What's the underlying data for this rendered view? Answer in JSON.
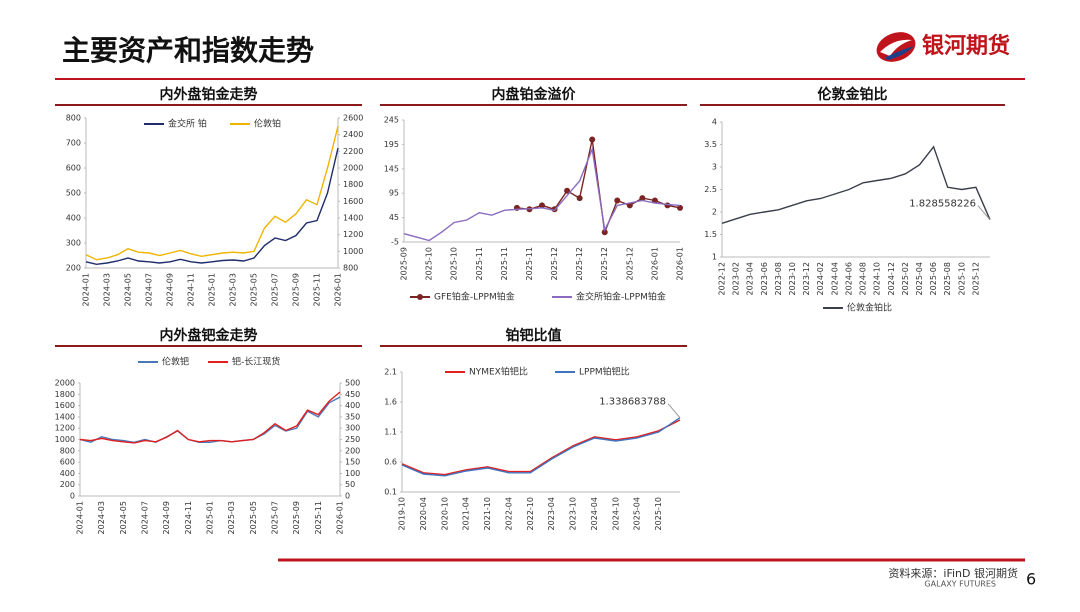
{
  "header": {
    "title": "主要资产和指数走势"
  },
  "logo": {
    "text": "银河期货"
  },
  "footer": {
    "source": "资料来源：iFinD 银河期货",
    "brand": "GALAXY FUTURES",
    "page": "6"
  },
  "chart_data": [
    {
      "type": "line",
      "title": "内外盘铂金走势",
      "legend": "top",
      "categories": [
        "2024-01",
        null,
        "2024-03",
        null,
        "2024-05",
        null,
        "2024-07",
        null,
        "2024-09",
        null,
        "2024-11",
        null,
        "2025-01",
        null,
        "2025-03",
        null,
        "2025-05",
        null,
        "2025-07",
        null,
        "2025-09",
        null,
        "2025-11",
        null,
        "2026-01"
      ],
      "series": [
        {
          "name": "金交所 铂",
          "color": "#1f2d6b",
          "values": [
            225,
            215,
            220,
            228,
            240,
            228,
            225,
            220,
            225,
            235,
            225,
            220,
            225,
            230,
            232,
            228,
            240,
            290,
            320,
            310,
            330,
            380,
            390,
            500,
            680
          ]
        },
        {
          "name": "伦敦铂",
          "color": "#f0b400",
          "axis": "y2",
          "values": [
            960,
            900,
            920,
            960,
            1030,
            990,
            980,
            950,
            980,
            1010,
            970,
            940,
            960,
            980,
            990,
            980,
            1000,
            1280,
            1420,
            1350,
            1450,
            1620,
            1560,
            2000,
            2500
          ]
        }
      ],
      "ylim": [
        200,
        800
      ],
      "yticks": [
        200,
        300,
        400,
        500,
        600,
        700,
        800
      ],
      "y2lim": [
        800,
        2600
      ],
      "y2ticks": [
        800,
        1000,
        1200,
        1400,
        1600,
        1800,
        2000,
        2200,
        2400,
        2600
      ]
    },
    {
      "type": "line",
      "title": "内盘铂金溢价",
      "legend": "bottom",
      "categories": [
        "2025-09",
        null,
        "2025-10",
        null,
        "2025-10",
        null,
        "2025-11",
        null,
        "2025-11",
        null,
        "2025-11",
        null,
        "2025-12",
        null,
        "2025-12",
        null,
        "2025-12",
        null,
        "2025-12",
        null,
        "2026-01",
        null,
        "2026-01"
      ],
      "series": [
        {
          "name": "GFE铂金-LPPM铂金",
          "color": "#7b2424",
          "marker": true,
          "values": [
            null,
            null,
            null,
            null,
            null,
            null,
            null,
            null,
            null,
            65,
            62,
            70,
            62,
            100,
            85,
            205,
            15,
            80,
            70,
            85,
            80,
            70,
            65
          ]
        },
        {
          "name": "金交所铂金-LPPM铂金",
          "color": "#8a6bbf",
          "values": [
            12,
            5,
            -2,
            15,
            35,
            40,
            55,
            50,
            60,
            62,
            63,
            65,
            60,
            90,
            120,
            185,
            20,
            70,
            75,
            80,
            75,
            72,
            70
          ]
        }
      ],
      "ylim": [
        -5,
        245
      ],
      "yticks": [
        -5,
        45,
        95,
        145,
        195,
        245
      ]
    },
    {
      "type": "line",
      "title": "伦敦金铂比",
      "legend": "bottom",
      "annotate": "last",
      "categories": [
        "2022-12",
        "2023-02",
        "2023-04",
        "2023-06",
        "2023-08",
        "2023-10",
        "2023-12",
        "2024-02",
        "2024-04",
        "2024-06",
        "2024-08",
        "2024-10",
        "2024-12",
        "2025-02",
        "2025-04",
        "2025-06",
        "2025-08",
        "2025-10",
        "2025-12",
        null
      ],
      "series": [
        {
          "name": "伦敦金铂比",
          "color": "#3a3f4a",
          "values": [
            1.75,
            1.85,
            1.95,
            2.0,
            2.05,
            2.15,
            2.25,
            2.3,
            2.4,
            2.5,
            2.65,
            2.7,
            2.75,
            2.85,
            3.05,
            3.45,
            2.55,
            2.5,
            2.55,
            1.828558226
          ]
        }
      ],
      "ylim": [
        1,
        4
      ],
      "yticks": [
        1,
        1.5,
        2,
        2.5,
        3,
        3.5,
        4
      ]
    },
    {
      "type": "line",
      "title": "内外盘钯金走势",
      "legend": "top",
      "categories": [
        "2024-01",
        null,
        "2024-03",
        null,
        "2024-05",
        null,
        "2024-07",
        null,
        "2024-09",
        null,
        "2024-11",
        null,
        "2025-01",
        null,
        "2025-03",
        null,
        "2025-05",
        null,
        "2025-07",
        null,
        "2025-09",
        null,
        "2025-11",
        null,
        "2026-01"
      ],
      "series": [
        {
          "name": "伦敦钯",
          "color": "#4a78b8",
          "values": [
            1000,
            950,
            1050,
            1000,
            980,
            950,
            1000,
            950,
            1050,
            1150,
            1000,
            950,
            950,
            980,
            960,
            980,
            1000,
            1100,
            1250,
            1150,
            1200,
            1500,
            1400,
            1650,
            1750
          ]
        },
        {
          "name": "钯-长江现货",
          "color": "#e02020",
          "axis": "y2",
          "values": [
            250,
            245,
            255,
            245,
            240,
            235,
            245,
            240,
            260,
            290,
            250,
            240,
            245,
            245,
            240,
            245,
            250,
            280,
            320,
            290,
            310,
            380,
            360,
            420,
            460
          ]
        }
      ],
      "ylim": [
        0,
        2000
      ],
      "yticks": [
        0,
        200,
        400,
        600,
        800,
        1000,
        1200,
        1400,
        1600,
        1800,
        2000
      ],
      "y2lim": [
        0,
        500
      ],
      "y2ticks": [
        0,
        50,
        100,
        150,
        200,
        250,
        300,
        350,
        400,
        450,
        500
      ]
    },
    {
      "type": "line",
      "title": "铂钯比值",
      "legend": "top",
      "annotate": "last",
      "categories": [
        "2019-10",
        "2020-04",
        "2020-10",
        "2021-04",
        "2021-10",
        "2022-04",
        "2022-10",
        "2023-04",
        "2023-10",
        "2024-04",
        "2024-10",
        "2025-04",
        "2025-10",
        null
      ],
      "series": [
        {
          "name": "NYMEX铂钯比",
          "color": "#e02020",
          "values": [
            0.57,
            0.42,
            0.39,
            0.47,
            0.52,
            0.44,
            0.44,
            0.67,
            0.87,
            1.02,
            0.97,
            1.02,
            1.12,
            1.3
          ]
        },
        {
          "name": "LPPM铂钯比",
          "color": "#3f73c0",
          "values": [
            0.55,
            0.4,
            0.37,
            0.45,
            0.5,
            0.42,
            0.42,
            0.65,
            0.85,
            1.0,
            0.95,
            1.0,
            1.1,
            1.338683788
          ]
        }
      ],
      "ylim": [
        0.1,
        2.1
      ],
      "yticks": [
        0.1,
        0.6,
        1.1,
        1.6,
        2.1
      ]
    }
  ]
}
